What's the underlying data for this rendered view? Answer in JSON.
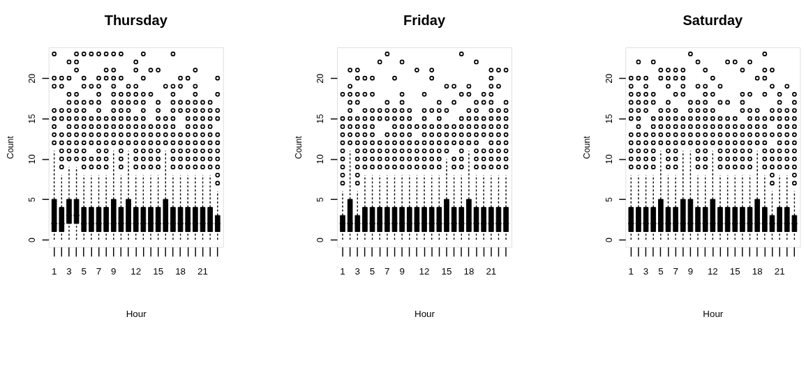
{
  "chart_data": [
    {
      "type": "box",
      "title": "Thursday",
      "xlabel": "Hour",
      "ylabel": "Count",
      "color": "#000000",
      "marker": "circle",
      "grid": false,
      "categories": [
        "1",
        null,
        "3",
        null,
        "5",
        null,
        "7",
        null,
        "9",
        null,
        null,
        "12",
        null,
        null,
        "15",
        null,
        null,
        "18",
        null,
        null,
        "21",
        null,
        null
      ],
      "ylim": [
        -0.9,
        23.8
      ],
      "yticks": [
        0,
        5,
        10,
        15,
        20
      ],
      "boxes": [
        {
          "low": 0,
          "q1": 1,
          "median": 2,
          "q3": 5,
          "high": 11,
          "outliers": [
            12,
            13,
            14,
            15,
            16,
            19,
            20,
            23
          ]
        },
        {
          "low": 0,
          "q1": 1,
          "median": 2,
          "q3": 4,
          "high": 8,
          "outliers": [
            9,
            10,
            11,
            12,
            13,
            15,
            16,
            19,
            20
          ]
        },
        {
          "low": 0,
          "q1": 2,
          "median": 3,
          "q3": 5,
          "high": 9,
          "outliers": [
            10,
            11,
            12,
            13,
            14,
            15,
            16,
            17,
            18,
            20,
            22
          ]
        },
        {
          "low": 0,
          "q1": 2,
          "median": 3,
          "q3": 5,
          "high": 9,
          "outliers": [
            10,
            11,
            12,
            13,
            14,
            15,
            16,
            17,
            18,
            21,
            22,
            23
          ]
        },
        {
          "low": 0,
          "q1": 1,
          "median": 2,
          "q3": 4,
          "high": 8,
          "outliers": [
            9,
            10,
            11,
            12,
            13,
            14,
            15,
            16,
            17,
            19,
            20,
            23
          ]
        },
        {
          "low": 0,
          "q1": 1,
          "median": 2,
          "q3": 4,
          "high": 8,
          "outliers": [
            9,
            10,
            12,
            13,
            14,
            15,
            17,
            19,
            23
          ]
        },
        {
          "low": 0,
          "q1": 1,
          "median": 2,
          "q3": 4,
          "high": 8,
          "outliers": [
            9,
            10,
            11,
            12,
            13,
            14,
            15,
            16,
            17,
            18,
            19,
            20,
            23
          ]
        },
        {
          "low": 0,
          "q1": 1,
          "median": 2,
          "q3": 4,
          "high": 8,
          "outliers": [
            9,
            10,
            11,
            12,
            13,
            14,
            15,
            20,
            21,
            23
          ]
        },
        {
          "low": 0,
          "q1": 1,
          "median": 2,
          "q3": 5,
          "high": 11,
          "outliers": [
            12,
            13,
            14,
            15,
            16,
            17,
            18,
            19,
            20,
            21,
            23
          ]
        },
        {
          "low": 0,
          "q1": 1,
          "median": 2,
          "q3": 4,
          "high": 8,
          "outliers": [
            9,
            10,
            11,
            12,
            13,
            14,
            15,
            16,
            17,
            18,
            20,
            23
          ]
        },
        {
          "low": 0,
          "q1": 1,
          "median": 2,
          "q3": 5,
          "high": 11,
          "outliers": [
            12,
            13,
            14,
            15,
            16,
            17,
            18,
            19
          ]
        },
        {
          "low": 0,
          "q1": 1,
          "median": 2,
          "q3": 4,
          "high": 8,
          "outliers": [
            9,
            10,
            11,
            12,
            13,
            14,
            15,
            17,
            18,
            19,
            21,
            22
          ]
        },
        {
          "low": 0,
          "q1": 1,
          "median": 2,
          "q3": 4,
          "high": 8,
          "outliers": [
            9,
            10,
            11,
            12,
            13,
            14,
            15,
            16,
            17,
            18,
            20,
            23
          ]
        },
        {
          "low": 0,
          "q1": 1,
          "median": 2,
          "q3": 4,
          "high": 8,
          "outliers": [
            9,
            10,
            11,
            12,
            13,
            14,
            18,
            21
          ]
        },
        {
          "low": 0,
          "q1": 1,
          "median": 2,
          "q3": 4,
          "high": 8,
          "outliers": [
            9,
            10,
            11,
            12,
            13,
            14,
            15,
            16,
            17,
            21
          ]
        },
        {
          "low": 0,
          "q1": 1,
          "median": 2,
          "q3": 5,
          "high": 11,
          "outliers": [
            12,
            13,
            14,
            15,
            19
          ]
        },
        {
          "low": 0,
          "q1": 1,
          "median": 2,
          "q3": 4,
          "high": 8,
          "outliers": [
            9,
            10,
            11,
            12,
            13,
            14,
            15,
            16,
            17,
            18,
            19,
            23
          ]
        },
        {
          "low": 0,
          "q1": 1,
          "median": 2,
          "q3": 4,
          "high": 8,
          "outliers": [
            9,
            10,
            11,
            12,
            13,
            16,
            17,
            19,
            20
          ]
        },
        {
          "low": 0,
          "q1": 1,
          "median": 2,
          "q3": 4,
          "high": 8,
          "outliers": [
            9,
            10,
            11,
            12,
            13,
            14,
            15,
            16,
            17,
            20
          ]
        },
        {
          "low": 0,
          "q1": 1,
          "median": 2,
          "q3": 4,
          "high": 8,
          "outliers": [
            9,
            10,
            11,
            12,
            13,
            14,
            15,
            16,
            17,
            18,
            19,
            21
          ]
        },
        {
          "low": 0,
          "q1": 1,
          "median": 2,
          "q3": 4,
          "high": 8,
          "outliers": [
            9,
            10,
            11,
            12,
            13,
            14,
            15,
            16,
            17
          ]
        },
        {
          "low": 0,
          "q1": 1,
          "median": 2,
          "q3": 4,
          "high": 8,
          "outliers": [
            9,
            10,
            11,
            12,
            13,
            14,
            15,
            16,
            17
          ]
        },
        {
          "low": 0,
          "q1": 1,
          "median": 2,
          "q3": 3,
          "high": 6,
          "outliers": [
            7,
            8,
            9,
            10,
            11,
            12,
            13,
            15,
            16,
            18,
            20
          ]
        }
      ]
    },
    {
      "type": "box",
      "title": "Friday",
      "xlabel": "Hour",
      "ylabel": "Count",
      "color": "#000000",
      "marker": "circle",
      "grid": false,
      "categories": [
        "1",
        null,
        "3",
        null,
        "5",
        null,
        "7",
        null,
        "9",
        null,
        null,
        "12",
        null,
        null,
        "15",
        null,
        null,
        "18",
        null,
        null,
        "21",
        null,
        null
      ],
      "ylim": [
        -0.9,
        23.8
      ],
      "yticks": [
        0,
        5,
        10,
        15,
        20
      ],
      "boxes": [
        {
          "low": 0,
          "q1": 1,
          "median": 2,
          "q3": 3,
          "high": 6,
          "outliers": [
            7,
            8,
            9,
            10,
            11,
            12,
            13,
            14,
            15,
            18
          ]
        },
        {
          "low": 0,
          "q1": 1,
          "median": 2,
          "q3": 5,
          "high": 11,
          "outliers": [
            12,
            13,
            14,
            15,
            16,
            17,
            18,
            19,
            21
          ]
        },
        {
          "low": 0,
          "q1": 1,
          "median": 2,
          "q3": 3,
          "high": 6,
          "outliers": [
            7,
            8,
            9,
            10,
            11,
            12,
            13,
            14,
            15,
            17,
            18,
            20,
            21
          ]
        },
        {
          "low": 0,
          "q1": 1,
          "median": 2,
          "q3": 4,
          "high": 8,
          "outliers": [
            9,
            10,
            11,
            12,
            13,
            14,
            15,
            16,
            18,
            20
          ]
        },
        {
          "low": 0,
          "q1": 1,
          "median": 2,
          "q3": 4,
          "high": 8,
          "outliers": [
            9,
            10,
            11,
            12,
            13,
            14,
            15,
            16,
            18,
            20
          ]
        },
        {
          "low": 0,
          "q1": 1,
          "median": 2,
          "q3": 4,
          "high": 8,
          "outliers": [
            9,
            10,
            11,
            12,
            15,
            16,
            22
          ]
        },
        {
          "low": 0,
          "q1": 1,
          "median": 2,
          "q3": 4,
          "high": 8,
          "outliers": [
            9,
            10,
            11,
            12,
            13,
            15,
            16,
            17,
            23
          ]
        },
        {
          "low": 0,
          "q1": 1,
          "median": 2,
          "q3": 4,
          "high": 8,
          "outliers": [
            9,
            10,
            11,
            12,
            13,
            14,
            15,
            16,
            20
          ]
        },
        {
          "low": 0,
          "q1": 1,
          "median": 2,
          "q3": 4,
          "high": 8,
          "outliers": [
            9,
            10,
            11,
            12,
            13,
            14,
            15,
            16,
            17,
            18,
            22
          ]
        },
        {
          "low": 0,
          "q1": 1,
          "median": 2,
          "q3": 4,
          "high": 8,
          "outliers": [
            9,
            10,
            11,
            12,
            13,
            14,
            15,
            16
          ]
        },
        {
          "low": 0,
          "q1": 1,
          "median": 2,
          "q3": 4,
          "high": 8,
          "outliers": [
            9,
            10,
            11,
            12,
            14,
            21
          ]
        },
        {
          "low": 0,
          "q1": 1,
          "median": 2,
          "q3": 4,
          "high": 8,
          "outliers": [
            9,
            10,
            11,
            12,
            13,
            14,
            15,
            16,
            18
          ]
        },
        {
          "low": 0,
          "q1": 1,
          "median": 2,
          "q3": 4,
          "high": 8,
          "outliers": [
            9,
            10,
            11,
            12,
            13,
            14,
            16,
            20,
            21
          ]
        },
        {
          "low": 0,
          "q1": 1,
          "median": 2,
          "q3": 4,
          "high": 8,
          "outliers": [
            9,
            10,
            11,
            12,
            13,
            14,
            15,
            16,
            17
          ]
        },
        {
          "low": 0,
          "q1": 1,
          "median": 2,
          "q3": 5,
          "high": 10,
          "outliers": [
            11,
            12,
            13,
            14,
            16,
            19
          ]
        },
        {
          "low": 0,
          "q1": 1,
          "median": 2,
          "q3": 4,
          "high": 8,
          "outliers": [
            9,
            10,
            12,
            13,
            14,
            17,
            19
          ]
        },
        {
          "low": 0,
          "q1": 1,
          "median": 2,
          "q3": 4,
          "high": 8,
          "outliers": [
            9,
            10,
            11,
            12,
            13,
            14,
            15,
            18,
            23
          ]
        },
        {
          "low": 0,
          "q1": 1,
          "median": 2,
          "q3": 5,
          "high": 11,
          "outliers": [
            12,
            13,
            14,
            15,
            16,
            18,
            19
          ]
        },
        {
          "low": 0,
          "q1": 1,
          "median": 2,
          "q3": 4,
          "high": 8,
          "outliers": [
            9,
            10,
            11,
            12,
            13,
            14,
            15,
            16,
            17,
            22
          ]
        },
        {
          "low": 0,
          "q1": 1,
          "median": 2,
          "q3": 4,
          "high": 8,
          "outliers": [
            9,
            10,
            11,
            13,
            14,
            15,
            17,
            18
          ]
        },
        {
          "low": 0,
          "q1": 1,
          "median": 2,
          "q3": 4,
          "high": 8,
          "outliers": [
            9,
            10,
            11,
            12,
            13,
            14,
            15,
            16,
            17,
            18,
            19,
            20,
            21
          ]
        },
        {
          "low": 0,
          "q1": 1,
          "median": 2,
          "q3": 4,
          "high": 8,
          "outliers": [
            9,
            10,
            11,
            12,
            13,
            14,
            15,
            16,
            19,
            21
          ]
        },
        {
          "low": 0,
          "q1": 1,
          "median": 2,
          "q3": 4,
          "high": 8,
          "outliers": [
            9,
            10,
            11,
            12,
            13,
            14,
            15,
            16,
            17,
            21
          ]
        }
      ]
    },
    {
      "type": "box",
      "title": "Saturday",
      "xlabel": "Hour",
      "ylabel": "Count",
      "color": "#000000",
      "marker": "circle",
      "grid": false,
      "categories": [
        "1",
        null,
        "3",
        null,
        "5",
        null,
        "7",
        null,
        "9",
        null,
        null,
        "12",
        null,
        null,
        "15",
        null,
        null,
        "18",
        null,
        null,
        "21",
        null,
        null
      ],
      "ylim": [
        -0.9,
        23.8
      ],
      "yticks": [
        0,
        5,
        10,
        15,
        20
      ],
      "boxes": [
        {
          "low": 0,
          "q1": 1,
          "median": 2,
          "q3": 4,
          "high": 8,
          "outliers": [
            9,
            10,
            11,
            12,
            13,
            15,
            16,
            17,
            18,
            19,
            20
          ]
        },
        {
          "low": 0,
          "q1": 1,
          "median": 2,
          "q3": 4,
          "high": 8,
          "outliers": [
            9,
            10,
            11,
            12,
            13,
            14,
            15,
            16,
            17,
            18,
            20,
            22
          ]
        },
        {
          "low": 0,
          "q1": 1,
          "median": 2,
          "q3": 4,
          "high": 8,
          "outliers": [
            9,
            10,
            11,
            12,
            13,
            16,
            17,
            18,
            19,
            20
          ]
        },
        {
          "low": 0,
          "q1": 1,
          "median": 2,
          "q3": 4,
          "high": 8,
          "outliers": [
            9,
            10,
            11,
            12,
            13,
            14,
            15,
            17,
            18,
            22
          ]
        },
        {
          "low": 0,
          "q1": 1,
          "median": 2,
          "q3": 5,
          "high": 11,
          "outliers": [
            12,
            13,
            14,
            15,
            16,
            20,
            21
          ]
        },
        {
          "low": 0,
          "q1": 1,
          "median": 2,
          "q3": 4,
          "high": 8,
          "outliers": [
            9,
            10,
            11,
            12,
            13,
            14,
            15,
            16,
            17,
            19,
            20,
            21
          ]
        },
        {
          "low": 0,
          "q1": 1,
          "median": 2,
          "q3": 4,
          "high": 8,
          "outliers": [
            9,
            10,
            11,
            12,
            13,
            14,
            15,
            16,
            18,
            20,
            21
          ]
        },
        {
          "low": 0,
          "q1": 1,
          "median": 2,
          "q3": 5,
          "high": 11,
          "outliers": [
            12,
            13,
            14,
            15,
            18,
            19,
            20,
            21
          ]
        },
        {
          "low": 0,
          "q1": 1,
          "median": 2,
          "q3": 5,
          "high": 11,
          "outliers": [
            12,
            13,
            14,
            15,
            16,
            17,
            23
          ]
        },
        {
          "low": 0,
          "q1": 1,
          "median": 2,
          "q3": 4,
          "high": 8,
          "outliers": [
            9,
            10,
            11,
            12,
            13,
            14,
            15,
            16,
            17,
            19,
            22
          ]
        },
        {
          "low": 0,
          "q1": 1,
          "median": 2,
          "q3": 4,
          "high": 8,
          "outliers": [
            9,
            10,
            11,
            12,
            13,
            14,
            15,
            16,
            17,
            18,
            19,
            21
          ]
        },
        {
          "low": 0,
          "q1": 1,
          "median": 2,
          "q3": 5,
          "high": 11,
          "outliers": [
            12,
            13,
            14,
            15,
            16,
            18,
            20
          ]
        },
        {
          "low": 0,
          "q1": 1,
          "median": 2,
          "q3": 4,
          "high": 8,
          "outliers": [
            9,
            10,
            11,
            12,
            13,
            14,
            15,
            17,
            19
          ]
        },
        {
          "low": 0,
          "q1": 1,
          "median": 2,
          "q3": 4,
          "high": 8,
          "outliers": [
            9,
            10,
            11,
            12,
            13,
            14,
            15,
            17,
            22
          ]
        },
        {
          "low": 0,
          "q1": 1,
          "median": 2,
          "q3": 4,
          "high": 8,
          "outliers": [
            9,
            10,
            11,
            12,
            13,
            14,
            15,
            22
          ]
        },
        {
          "low": 0,
          "q1": 1,
          "median": 2,
          "q3": 4,
          "high": 8,
          "outliers": [
            9,
            10,
            11,
            12,
            13,
            14,
            16,
            17,
            18,
            21
          ]
        },
        {
          "low": 0,
          "q1": 1,
          "median": 2,
          "q3": 4,
          "high": 8,
          "outliers": [
            9,
            10,
            11,
            12,
            13,
            14,
            15,
            16,
            18,
            22
          ]
        },
        {
          "low": 0,
          "q1": 1,
          "median": 2,
          "q3": 5,
          "high": 11,
          "outliers": [
            12,
            13,
            14,
            15,
            16,
            20
          ]
        },
        {
          "low": 0,
          "q1": 1,
          "median": 2,
          "q3": 4,
          "high": 8,
          "outliers": [
            9,
            10,
            11,
            12,
            13,
            14,
            15,
            18,
            20,
            21,
            23
          ]
        },
        {
          "low": 0,
          "q1": 1,
          "median": 2,
          "q3": 3,
          "high": 6,
          "outliers": [
            7,
            8,
            9,
            10,
            11,
            13,
            15,
            16,
            19,
            21
          ]
        },
        {
          "low": 0,
          "q1": 1,
          "median": 2,
          "q3": 4,
          "high": 8,
          "outliers": [
            9,
            10,
            11,
            12,
            13,
            14,
            15,
            16,
            17,
            18
          ]
        },
        {
          "low": 0,
          "q1": 1,
          "median": 2,
          "q3": 4,
          "high": 8,
          "outliers": [
            9,
            10,
            11,
            12,
            13,
            14,
            15,
            16,
            19
          ]
        },
        {
          "low": 0,
          "q1": 1,
          "median": 2,
          "q3": 3,
          "high": 6,
          "outliers": [
            7,
            8,
            9,
            10,
            11,
            12,
            13,
            14,
            15,
            16,
            17,
            18
          ]
        }
      ]
    }
  ]
}
